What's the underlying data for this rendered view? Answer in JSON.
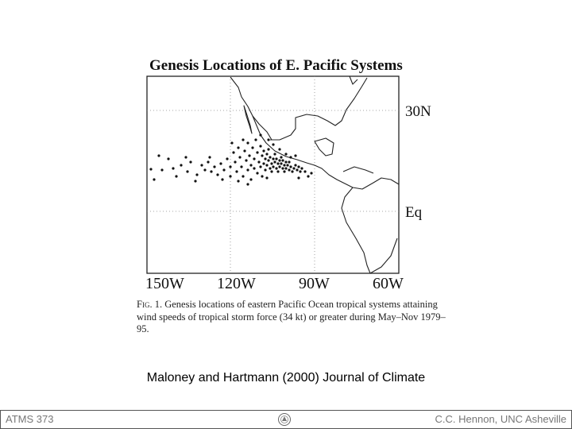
{
  "figure": {
    "title": "Genesis Locations of E. Pacific Systems",
    "longitude_labels": [
      "150W",
      "120W",
      "90W",
      "60W"
    ],
    "latitude_labels": [
      "30N",
      "Eq"
    ],
    "caption": {
      "fig_label": "Fig. 1.",
      "text": "Genesis locations of eastern Pacific Ocean tropical systems attaining wind speeds of tropical storm force (34 kt) or greater during May–Nov 1979–95."
    }
  },
  "credit": "Maloney and Hartmann (2000) Journal of Climate",
  "footer": {
    "left": "ATMS 373",
    "right": "C.C. Hennon, UNC Asheville",
    "logo_icon": "university-seal-icon"
  }
}
